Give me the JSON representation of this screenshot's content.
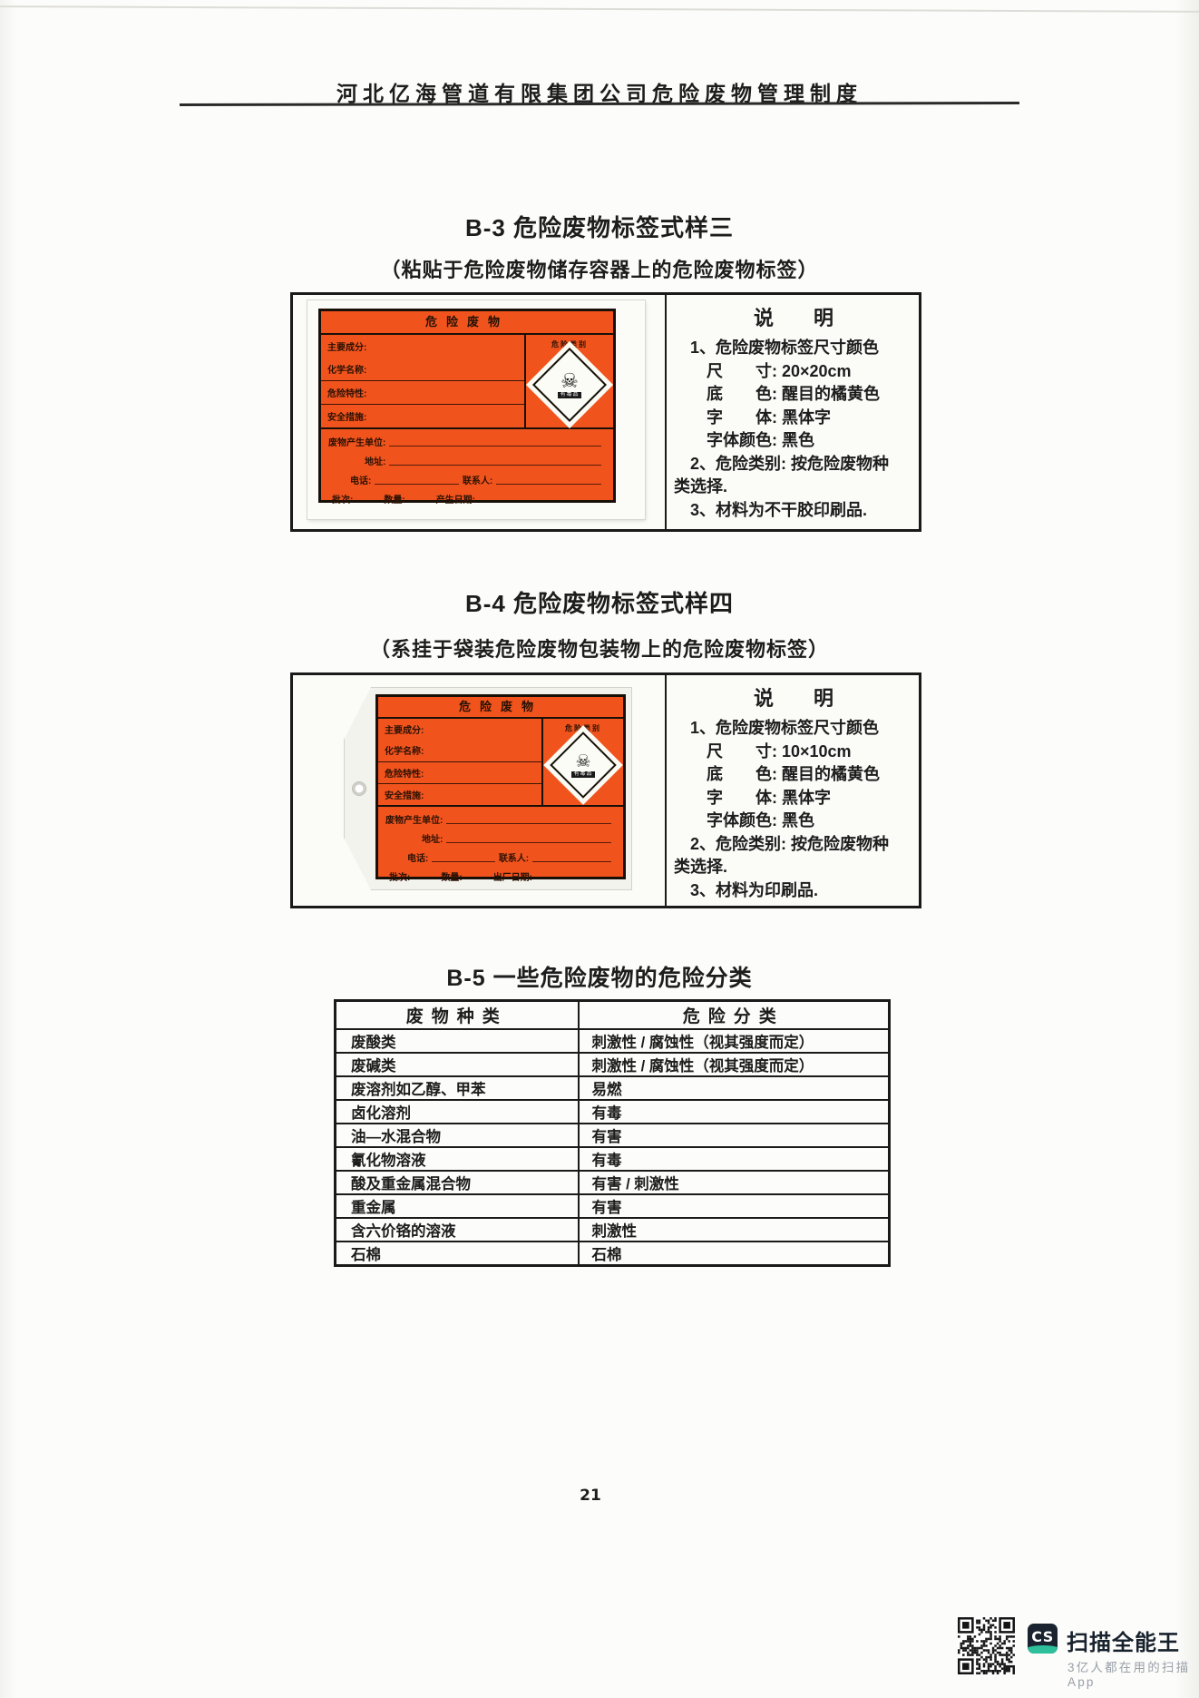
{
  "header": {
    "title": "河北亿海管道有限集团公司危险废物管理制度"
  },
  "page": {
    "number": "21"
  },
  "b3": {
    "title": "B-3 危险废物标签式样三",
    "subtitle": "（粘贴于危险废物储存容器上的危险废物标签）",
    "label": {
      "header": "危险废物",
      "fields": [
        "主要成分:",
        "化学名称:",
        "危险特性:",
        "安全措施:"
      ],
      "class_caption": "危险类别",
      "icon_text": "有毒品",
      "unit": "废物产生单位:",
      "address": "地址:",
      "phone": "电话:",
      "contact": "联系人:",
      "batch": "批次:",
      "quantity": "数量:",
      "date": "产生日期:"
    },
    "note": {
      "title": "说　　明",
      "lines": [
        "　1、危险废物标签尺寸颜色",
        "　　尺　　寸: 20×20cm",
        "　　底　　色: 醒目的橘黄色",
        "　　字　　体: 黑体字",
        "　　字体颜色: 黑色",
        "　2、危险类别: 按危险废物种",
        "类选择.",
        "　3、材料为不干胶印刷品."
      ]
    }
  },
  "b4": {
    "title": "B-4 危险废物标签式样四",
    "subtitle": "（系挂于袋装危险废物包装物上的危险废物标签）",
    "label": {
      "header": "危险废物",
      "fields": [
        "主要成分:",
        "化学名称:",
        "危险特性:",
        "安全措施:"
      ],
      "class_caption": "危险类别",
      "icon_text": "有毒品",
      "unit": "废物产生单位:",
      "address": "地址:",
      "phone": "电话:",
      "contact": "联系人:",
      "batch": "批次:",
      "quantity": "数量:",
      "date": "出厂日期:"
    },
    "note": {
      "title": "说　　明",
      "lines": [
        "　1、危险废物标签尺寸颜色",
        "　　尺　　寸: 10×10cm",
        "　　底　　色: 醒目的橘黄色",
        "　　字　　体: 黑体字",
        "　　字体颜色: 黑色",
        "　2、危险类别: 按危险废物种",
        "类选择.",
        "　3、材料为印刷品."
      ]
    }
  },
  "b5": {
    "title": "B-5 一些危险废物的危险分类",
    "table": {
      "headers": [
        "废物种类",
        "危险分类"
      ],
      "rows": [
        [
          "废酸类",
          "刺激性 / 腐蚀性（视其强度而定）"
        ],
        [
          "废碱类",
          "刺激性 / 腐蚀性（视其强度而定）"
        ],
        [
          "废溶剂如乙醇、甲苯",
          "易燃"
        ],
        [
          "卤化溶剂",
          "有毒"
        ],
        [
          "油—水混合物",
          "有害"
        ],
        [
          "氰化物溶液",
          "有毒"
        ],
        [
          "酸及重金属混合物",
          "有害 / 刺激性"
        ],
        [
          "重金属",
          "有害"
        ],
        [
          "含六价铬的溶液",
          "刺激性"
        ],
        [
          "石棉",
          "石棉"
        ]
      ]
    }
  },
  "footer": {
    "logo_text": "CS",
    "brand_name": "扫描全能王",
    "tagline": "3亿人都在用的扫描App",
    "colors": {
      "navy": "#1a2430",
      "teal": "#2ebf9b",
      "gray": "#98a0a8"
    }
  },
  "colors": {
    "label_orange": "#f1531d",
    "ink": "#1d1d1d"
  }
}
